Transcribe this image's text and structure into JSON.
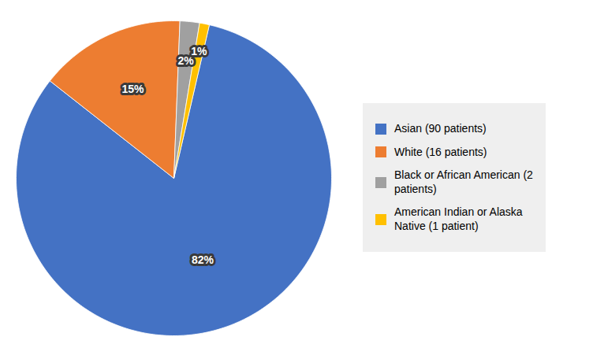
{
  "chart_data": {
    "type": "pie",
    "categories": [
      "Asian (90 patients)",
      "White (16 patients)",
      "Black or African American (2\npatients)",
      "American Indian or Alaska\nNative (1 patient)"
    ],
    "values": [
      82,
      15,
      2,
      1
    ],
    "value_labels": [
      "82%",
      "15%",
      "2%",
      "1%"
    ],
    "colors": [
      "#4472C4",
      "#ED7D31",
      "#A0A0A0",
      "#FFC000"
    ],
    "data_labels": true,
    "legend": "right"
  }
}
